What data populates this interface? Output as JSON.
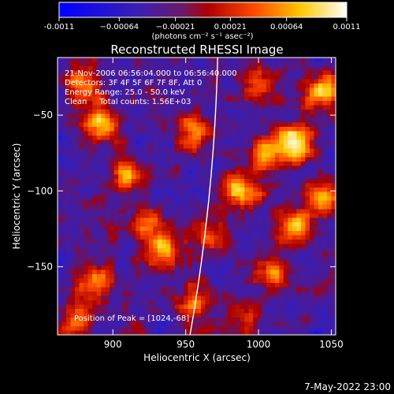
{
  "chart_data": {
    "type": "heatmap",
    "title": "Reconstructed RHESSI Image",
    "xlabel": "Heliocentric X (arcsec)",
    "ylabel": "Heliocentric Y (arcsec)",
    "xlim": [
      862,
      1053
    ],
    "ylim": [
      -195,
      -12
    ],
    "x_ticks": [
      900,
      950,
      1000,
      1050
    ],
    "y_ticks": [
      -50,
      -100,
      -150
    ],
    "colorbar": {
      "range": [
        -0.0011,
        0.0011
      ],
      "ticks": [
        -0.0011,
        -0.00064,
        -0.00021,
        0.00021,
        0.00064,
        0.0011
      ],
      "tick_labels": [
        "-0.0011",
        "−0.00064",
        "−0.00021",
        "0.00021",
        "0.00064",
        "0.0011"
      ],
      "unit_label": "(photons cm⁻² s⁻¹ asec⁻²)",
      "colors": [
        "#0000ff",
        "#4b0082",
        "#b00000",
        "#ff5a00",
        "#ffd400",
        "#ffffff"
      ]
    },
    "annotations": [
      "21-Nov-2006 06:56:04.000 to 06:56:40.000",
      "Detectors: 3F 4F 5F 6F 7F 8F, Att 0",
      "Energy Range: 25.0 - 50.0 keV",
      "Clean     Total counts: 1.56E+03"
    ],
    "peak_text": "Position of Peak = [1024,-68]",
    "limb_arc": {
      "x_at_top": 972,
      "x_at_bottom": 950
    },
    "blobs": [
      {
        "x": 893,
        "y": -55,
        "amp": 1.2
      },
      {
        "x": 880,
        "y": -30,
        "amp": 1.0
      },
      {
        "x": 910,
        "y": -90,
        "amp": 0.9
      },
      {
        "x": 955,
        "y": -60,
        "amp": 1.0
      },
      {
        "x": 988,
        "y": -100,
        "amp": 1.3
      },
      {
        "x": 1005,
        "y": -75,
        "amp": 1.0
      },
      {
        "x": 1025,
        "y": -68,
        "amp": 1.5
      },
      {
        "x": 1043,
        "y": -35,
        "amp": 1.3
      },
      {
        "x": 1025,
        "y": -125,
        "amp": 1.0
      },
      {
        "x": 1045,
        "y": -105,
        "amp": 1.0
      },
      {
        "x": 888,
        "y": -160,
        "amp": 1.0
      },
      {
        "x": 875,
        "y": -185,
        "amp": 0.8
      },
      {
        "x": 935,
        "y": -140,
        "amp": 1.0
      },
      {
        "x": 955,
        "y": -175,
        "amp": 0.9
      },
      {
        "x": 1010,
        "y": -155,
        "amp": 1.0
      },
      {
        "x": 990,
        "y": -185,
        "amp": 0.8
      },
      {
        "x": 1000,
        "y": -30,
        "amp": 0.8
      },
      {
        "x": 925,
        "y": -120,
        "amp": 0.8
      },
      {
        "x": 967,
        "y": -130,
        "amp": 0.7
      }
    ]
  },
  "footer": {
    "timestamp": "7-May-2022 23:00"
  }
}
